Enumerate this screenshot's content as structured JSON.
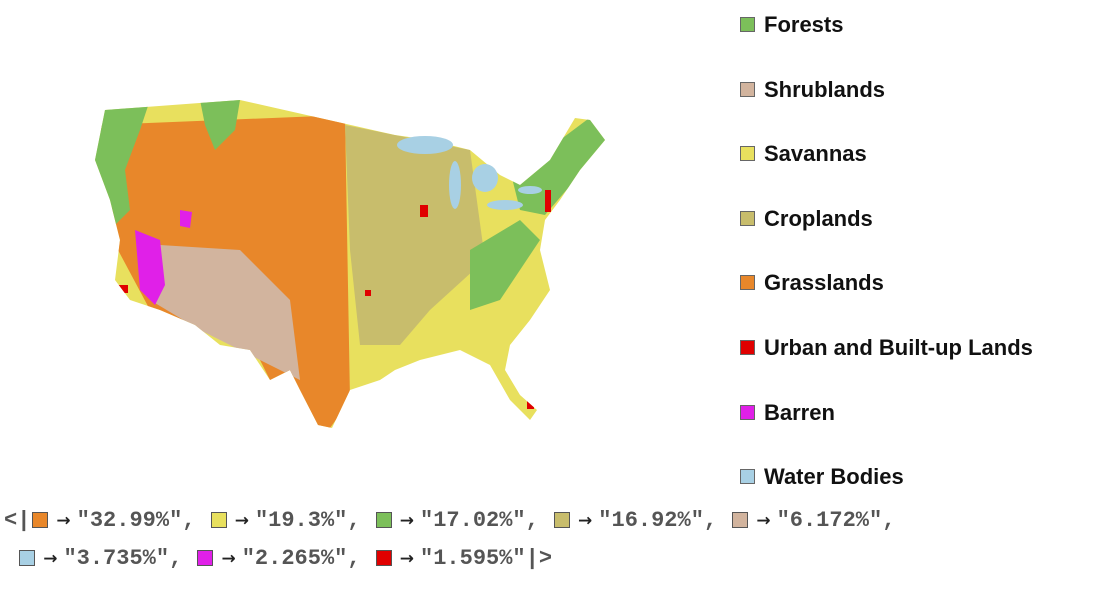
{
  "legend": {
    "items": [
      {
        "label": "Forests",
        "color": "#7cbf5a"
      },
      {
        "label": "Shrublands",
        "color": "#d2b49e"
      },
      {
        "label": "Savannas",
        "color": "#e8e05e"
      },
      {
        "label": "Croplands",
        "color": "#c8bd6c"
      },
      {
        "label": "Grasslands",
        "color": "#e8872a"
      },
      {
        "label": "Urban and Built-up Lands",
        "color": "#e00000"
      },
      {
        "label": "Barren",
        "color": "#e020e8"
      },
      {
        "label": "Water Bodies",
        "color": "#a8d0e4"
      }
    ]
  },
  "association": {
    "open": "<|",
    "close": "|>",
    "arrow": "→",
    "separator": ",",
    "entries": [
      {
        "color": "#e8872a",
        "text": "\"32.99%\""
      },
      {
        "color": "#e8e05e",
        "text": "\"19.3%\""
      },
      {
        "color": "#7cbf5a",
        "text": "\"17.02%\""
      },
      {
        "color": "#c8bd6c",
        "text": "\"16.92%\""
      },
      {
        "color": "#d2b49e",
        "text": "\"6.172%\""
      },
      {
        "color": "#a8d0e4",
        "text": "\"3.735%\""
      },
      {
        "color": "#e020e8",
        "text": "\"2.265%\""
      },
      {
        "color": "#e00000",
        "text": "\"1.595%\""
      }
    ]
  }
}
